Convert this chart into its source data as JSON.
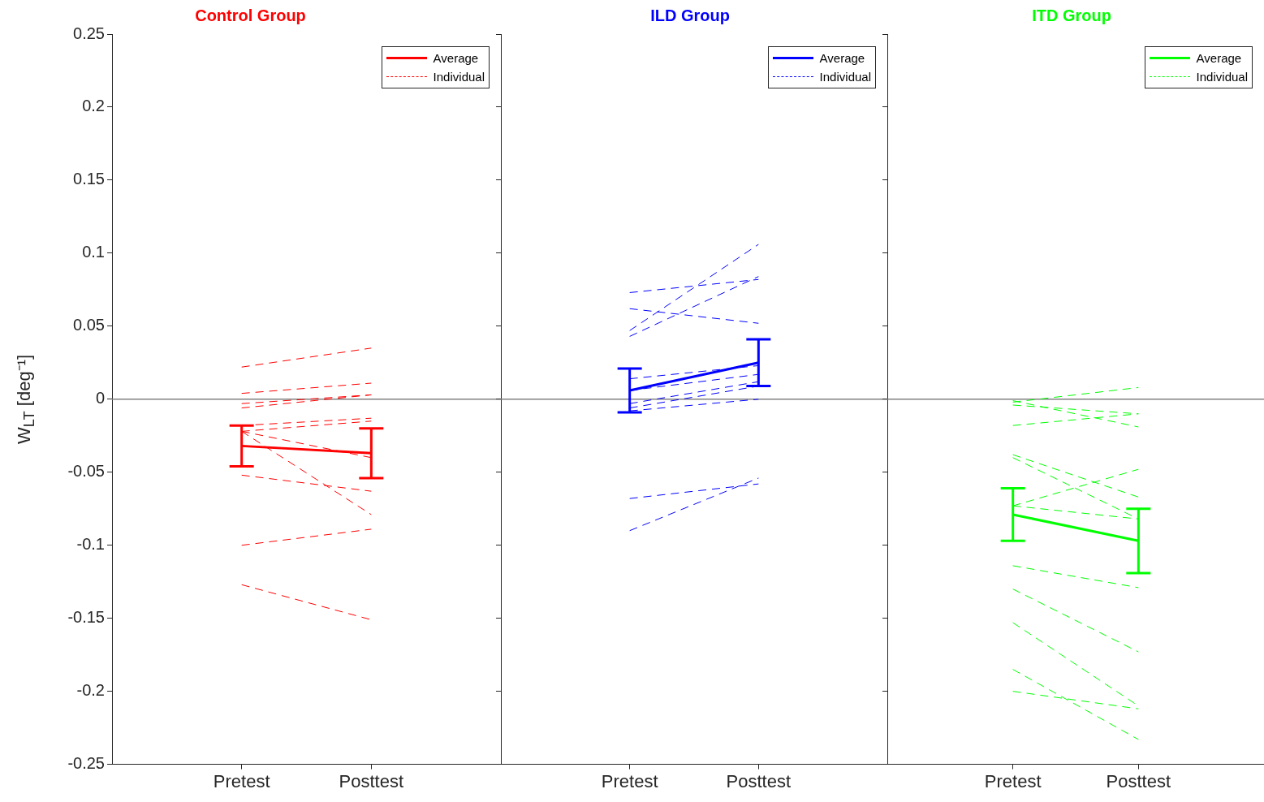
{
  "chart_data": [
    {
      "type": "line",
      "title": "Control Group",
      "ylabel": "W$_{LT}$ [deg⁻¹]",
      "categories": [
        "Pretest",
        "Posttest"
      ],
      "ylim": [
        -0.25,
        0.25
      ],
      "yticks": [
        -0.25,
        -0.2,
        -0.15,
        -0.1,
        -0.05,
        0,
        0.05,
        0.1,
        0.15,
        0.2,
        0.25
      ],
      "grid": false,
      "legend": "top right",
      "ref_lines": [
        {
          "axis": "y",
          "value": 0,
          "color": "#808080"
        }
      ],
      "series": [
        {
          "name": "Average",
          "color": "#ff0000",
          "line_style": "solid",
          "values": [
            -0.032,
            -0.037
          ],
          "errors": [
            0.014,
            0.017
          ]
        },
        {
          "name": "Individual",
          "color": "#ff0000",
          "line_style": "dashed",
          "values": [
            0.022,
            0.035
          ]
        },
        {
          "color": "#ff0000",
          "line_style": "dashed",
          "values": [
            0.004,
            0.011
          ]
        },
        {
          "color": "#ff0000",
          "line_style": "dashed",
          "values": [
            -0.003,
            0.003
          ]
        },
        {
          "color": "#ff0000",
          "line_style": "dashed",
          "values": [
            -0.006,
            0.003
          ]
        },
        {
          "color": "#ff0000",
          "line_style": "dashed",
          "values": [
            -0.018,
            -0.013
          ]
        },
        {
          "color": "#ff0000",
          "line_style": "dashed",
          "values": [
            -0.022,
            -0.015
          ]
        },
        {
          "color": "#ff0000",
          "line_style": "dashed",
          "values": [
            -0.022,
            -0.04
          ]
        },
        {
          "color": "#ff0000",
          "line_style": "dashed",
          "values": [
            -0.022,
            -0.079
          ]
        },
        {
          "color": "#ff0000",
          "line_style": "dashed",
          "values": [
            -0.052,
            -0.063
          ]
        },
        {
          "color": "#ff0000",
          "line_style": "dashed",
          "values": [
            -0.1,
            -0.089
          ]
        },
        {
          "color": "#ff0000",
          "line_style": "dashed",
          "values": [
            -0.127,
            -0.151
          ]
        }
      ]
    },
    {
      "type": "line",
      "title": "ILD Group",
      "categories": [
        "Pretest",
        "Posttest"
      ],
      "ylim": [
        -0.25,
        0.25
      ],
      "yticks": [
        -0.25,
        -0.2,
        -0.15,
        -0.1,
        -0.05,
        0,
        0.05,
        0.1,
        0.15,
        0.2,
        0.25
      ],
      "tick_labels": "x",
      "grid": false,
      "legend": "top right",
      "ref_lines": [
        {
          "axis": "y",
          "value": 0,
          "color": "#808080"
        }
      ],
      "series": [
        {
          "name": "Average",
          "color": "#0000ff",
          "line_style": "solid",
          "values": [
            0.006,
            0.025
          ],
          "errors": [
            0.015,
            0.016
          ]
        },
        {
          "name": "Individual",
          "color": "#0000ff",
          "line_style": "dashed",
          "values": [
            0.073,
            0.082
          ]
        },
        {
          "color": "#0000ff",
          "line_style": "dashed",
          "values": [
            0.062,
            0.052
          ]
        },
        {
          "color": "#0000ff",
          "line_style": "dashed",
          "values": [
            0.047,
            0.106
          ]
        },
        {
          "color": "#0000ff",
          "line_style": "dashed",
          "values": [
            0.043,
            0.084
          ]
        },
        {
          "color": "#0000ff",
          "line_style": "dashed",
          "values": [
            0.014,
            0.023
          ]
        },
        {
          "color": "#0000ff",
          "line_style": "dashed",
          "values": [
            0.006,
            0.017
          ]
        },
        {
          "color": "#0000ff",
          "line_style": "dashed",
          "values": [
            -0.003,
            0.012
          ]
        },
        {
          "color": "#0000ff",
          "line_style": "dashed",
          "values": [
            -0.006,
            0.009
          ]
        },
        {
          "color": "#0000ff",
          "line_style": "dashed",
          "values": [
            -0.008,
            0
          ]
        },
        {
          "color": "#0000ff",
          "line_style": "dashed",
          "values": [
            -0.068,
            -0.058
          ]
        },
        {
          "color": "#0000ff",
          "line_style": "dashed",
          "values": [
            -0.09,
            -0.054
          ]
        }
      ]
    },
    {
      "type": "line",
      "title": "ITD Group",
      "categories": [
        "Pretest",
        "Posttest"
      ],
      "ylim": [
        -0.25,
        0.25
      ],
      "yticks": [
        -0.25,
        -0.2,
        -0.15,
        -0.1,
        -0.05,
        0,
        0.05,
        0.1,
        0.15,
        0.2,
        0.25
      ],
      "tick_labels": "x",
      "grid": false,
      "legend": "top right",
      "ref_lines": [
        {
          "axis": "y",
          "value": 0,
          "color": "#808080"
        }
      ],
      "series": [
        {
          "name": "Average",
          "color": "#00ff00",
          "line_style": "solid",
          "values": [
            -0.079,
            -0.097
          ],
          "errors": [
            0.018,
            0.022
          ]
        },
        {
          "name": "Individual",
          "color": "#00ff00",
          "line_style": "dashed",
          "values": [
            -0.002,
            0.008
          ]
        },
        {
          "color": "#00ff00",
          "line_style": "dashed",
          "values": [
            -0.001,
            -0.019
          ]
        },
        {
          "color": "#00ff00",
          "line_style": "dashed",
          "values": [
            -0.004,
            -0.01
          ]
        },
        {
          "color": "#00ff00",
          "line_style": "dashed",
          "values": [
            -0.018,
            -0.01
          ]
        },
        {
          "color": "#00ff00",
          "line_style": "dashed",
          "values": [
            -0.038,
            -0.067
          ]
        },
        {
          "color": "#00ff00",
          "line_style": "dashed",
          "values": [
            -0.04,
            -0.082
          ]
        },
        {
          "color": "#00ff00",
          "line_style": "dashed",
          "values": [
            -0.073,
            -0.048
          ]
        },
        {
          "color": "#00ff00",
          "line_style": "dashed",
          "values": [
            -0.073,
            -0.082
          ]
        },
        {
          "color": "#00ff00",
          "line_style": "dashed",
          "values": [
            -0.114,
            -0.129
          ]
        },
        {
          "color": "#00ff00",
          "line_style": "dashed",
          "values": [
            -0.13,
            -0.173
          ]
        },
        {
          "color": "#00ff00",
          "line_style": "dashed",
          "values": [
            -0.153,
            -0.21
          ]
        },
        {
          "color": "#00ff00",
          "line_style": "dashed",
          "values": [
            -0.185,
            -0.233
          ]
        },
        {
          "color": "#00ff00",
          "line_style": "dashed",
          "values": [
            -0.2,
            -0.212
          ]
        }
      ]
    }
  ]
}
